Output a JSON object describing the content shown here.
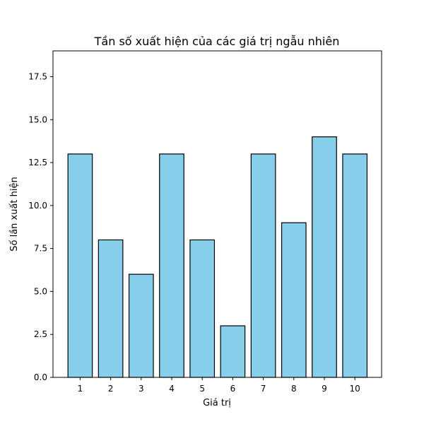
{
  "chart_data": {
    "type": "bar",
    "title": "Tần số xuất hiện của các giá trị ngẫu nhiên",
    "xlabel": "Giá trị",
    "ylabel": "Số lần xuất hiện",
    "categories": [
      "1",
      "2",
      "3",
      "4",
      "5",
      "6",
      "7",
      "8",
      "9",
      "10"
    ],
    "values": [
      13,
      8,
      6,
      13,
      8,
      3,
      13,
      9,
      14,
      13
    ],
    "ylim": [
      0,
      19
    ],
    "yticks": [
      "0.0",
      "2.5",
      "5.0",
      "7.5",
      "10.0",
      "12.5",
      "15.0",
      "17.5"
    ],
    "grid": false,
    "bar_color": "#87ceeb",
    "edge_color": "#000000"
  }
}
